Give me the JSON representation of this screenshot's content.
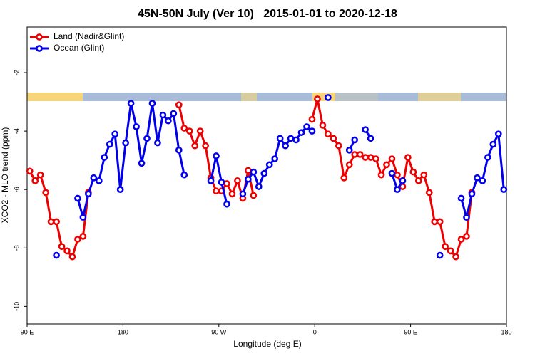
{
  "chart_data": {
    "type": "line",
    "title": "45N-50N July (Ver 10)   2015-01-01 to 2020-12-18",
    "x_label": "Longitude (deg E)",
    "y_label": "XCO2 - MLO trend (ppm)",
    "legend_position": "top-left",
    "xlim": [
      90,
      540
    ],
    "xticks": [
      {
        "value": 90,
        "label": "90 E"
      },
      180,
      {
        "value": 270,
        "label": "90 W"
      },
      {
        "value": 360,
        "label": "0"
      },
      {
        "value": 450,
        "label": "90 E"
      },
      {
        "value": 540,
        "label": "180"
      }
    ],
    "ylim": [
      -10.6,
      -0.44
    ],
    "yticks": [
      -2,
      -4,
      -6,
      -8,
      -10
    ],
    "x": [
      92.5,
      97.5,
      102.5,
      107.5,
      112.5,
      117.5,
      122.5,
      127.5,
      132.5,
      137.5,
      142.5,
      147.5,
      152.5,
      157.5,
      162.5,
      167.5,
      172.5,
      177.5,
      182.5,
      187.5,
      192.5,
      197.5,
      202.5,
      207.5,
      212.5,
      217.5,
      222.5,
      227.5,
      232.5,
      237.5,
      242.5,
      247.5,
      252.5,
      257.5,
      262.5,
      267.5,
      272.5,
      277.5,
      282.5,
      287.5,
      292.5,
      297.5,
      302.5,
      307.5,
      312.5,
      317.5,
      322.5,
      327.5,
      332.5,
      337.5,
      342.5,
      347.5,
      352.5,
      357.5,
      362.5,
      367.5,
      372.5,
      377.5,
      382.5,
      387.5,
      392.5,
      397.5,
      402.5,
      407.5,
      412.5,
      417.5,
      422.5,
      427.5,
      432.5,
      437.5,
      442.5,
      447.5,
      452.5,
      457.5,
      462.5,
      467.5,
      472.5,
      477.5,
      482.5,
      487.5,
      492.5,
      497.5,
      502.5,
      507.5,
      512.5,
      517.5,
      522.5,
      527.5,
      532.5,
      537.5
    ],
    "series": [
      {
        "name": "Land (Nadir&Glint)",
        "color": "#ee0000",
        "values": [
          -5.37,
          -5.7,
          -5.5,
          -6.1,
          -7.1,
          -7.1,
          -7.95,
          -8.1,
          -8.3,
          -7.7,
          -7.6,
          -6.1,
          null,
          null,
          null,
          null,
          null,
          null,
          null,
          null,
          null,
          null,
          null,
          null,
          null,
          null,
          null,
          null,
          -3.1,
          -3.9,
          -4.0,
          -4.5,
          -4.0,
          -4.5,
          -5.6,
          -6.05,
          -6.05,
          -5.8,
          -6.15,
          -5.7,
          -6.3,
          -5.35,
          -6.2,
          null,
          null,
          null,
          null,
          null,
          null,
          null,
          null,
          null,
          null,
          -3.6,
          -2.9,
          -3.8,
          -4.1,
          -4.25,
          -4.5,
          -5.6,
          -5.15,
          -4.8,
          -4.8,
          -4.9,
          -4.9,
          -4.95,
          -5.5,
          -5.15,
          -4.95,
          -5.5,
          -5.9,
          -4.9,
          -5.4,
          -5.7,
          -5.5,
          -6.1,
          -7.1,
          -7.1,
          -7.95,
          -8.1,
          -8.3,
          -7.7,
          -7.6,
          -6.1,
          null,
          null,
          null,
          null,
          null,
          null
        ]
      },
      {
        "name": "Ocean (Glint)",
        "color": "#0000ee",
        "values": [
          null,
          null,
          null,
          null,
          null,
          -8.25,
          null,
          null,
          null,
          -6.3,
          -6.95,
          -6.15,
          -5.6,
          -5.7,
          -4.9,
          -4.45,
          -4.1,
          -6.0,
          -4.4,
          -3.05,
          -3.85,
          -5.1,
          -4.25,
          -3.05,
          -4.4,
          -3.45,
          -3.65,
          -3.4,
          -4.65,
          -5.5,
          null,
          null,
          null,
          null,
          -5.7,
          -4.85,
          -5.75,
          -6.5,
          null,
          null,
          -6.15,
          -5.65,
          -5.4,
          -5.9,
          -5.45,
          -5.15,
          -4.95,
          -4.25,
          -4.5,
          -4.25,
          -4.3,
          -4.05,
          -3.85,
          -4.0,
          null,
          null,
          -2.85,
          null,
          null,
          null,
          -4.65,
          -4.3,
          null,
          -3.95,
          -4.25,
          null,
          null,
          null,
          -5.45,
          -6.0,
          -5.7,
          null,
          null,
          null,
          null,
          null,
          null,
          -8.25,
          null,
          null,
          null,
          -6.3,
          -6.95,
          -6.15,
          -5.6,
          -5.7,
          -4.9,
          -4.45,
          -4.1,
          -6.0
        ]
      }
    ]
  }
}
